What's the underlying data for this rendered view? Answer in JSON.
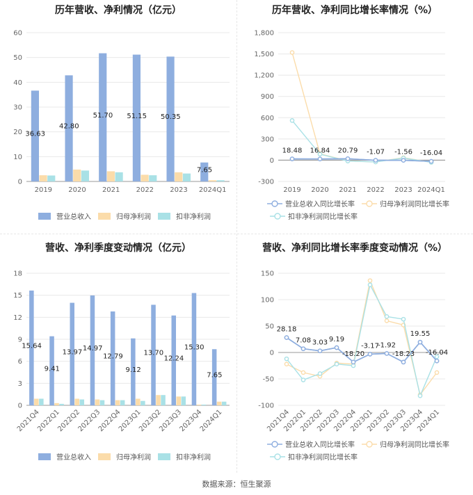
{
  "footer": {
    "source": "数据来源：恒生聚源"
  },
  "colors": {
    "revenue": "#8eaedf",
    "net_profit": "#fbdcaa",
    "deducted": "#a9e1e6"
  },
  "chart_data": [
    {
      "id": "annual_amount",
      "type": "bar",
      "title": "历年营收、净利情况（亿元）",
      "categories": [
        "2019",
        "2020",
        "2021",
        "2022",
        "2023",
        "2024Q1"
      ],
      "series": [
        {
          "name": "营业总收入",
          "values": [
            36.63,
            42.8,
            51.7,
            51.15,
            50.35,
            7.65
          ],
          "labels": [
            "36.63",
            "42.80",
            "51.70",
            "51.15",
            "50.35",
            "7.65"
          ]
        },
        {
          "name": "归母净利润",
          "values": [
            2.5,
            4.8,
            4.1,
            2.7,
            3.7,
            0.5
          ]
        },
        {
          "name": "扣非净利润",
          "values": [
            2.4,
            4.4,
            3.7,
            2.5,
            3.2,
            0.5
          ]
        }
      ],
      "yticks": [
        "0",
        "10",
        "20",
        "30",
        "40",
        "50",
        "60"
      ],
      "ylim": [
        0,
        60
      ],
      "legend": "bottom"
    },
    {
      "id": "annual_growth",
      "type": "line",
      "title": "历年营收、净利同比增长率情况（%）",
      "categories": [
        "2019",
        "2020",
        "2021",
        "2022",
        "2023",
        "2024Q1"
      ],
      "series": [
        {
          "name": "营业总收入同比增长率",
          "values": [
            18.48,
            16.84,
            20.79,
            -1.07,
            -1.56,
            -16.04
          ],
          "labels": [
            "18.48",
            "16.84",
            "20.79",
            "-1.07",
            "-1.56",
            "-16.04"
          ]
        },
        {
          "name": "归母净利润同比增长率",
          "values": [
            1520,
            90,
            -10,
            -25,
            35,
            -30
          ]
        },
        {
          "name": "扣非净利润同比增长率",
          "values": [
            560,
            85,
            -12,
            -25,
            30,
            -30
          ]
        }
      ],
      "yticks": [
        "-300",
        "0",
        "300",
        "600",
        "900",
        "1,200",
        "1,500",
        "1,800"
      ],
      "ylim": [
        -300,
        1800
      ],
      "legend": "bottom"
    },
    {
      "id": "quarterly_amount",
      "type": "bar",
      "title": "营收、净利季度变动情况（亿元）",
      "categories": [
        "2021Q4",
        "2022Q1",
        "2022Q2",
        "2022Q3",
        "2022Q4",
        "2023Q1",
        "2023Q2",
        "2023Q3",
        "2023Q4",
        "2024Q1"
      ],
      "series": [
        {
          "name": "营业总收入",
          "values": [
            15.64,
            9.41,
            13.97,
            14.97,
            12.79,
            9.12,
            13.7,
            12.24,
            15.3,
            7.65
          ],
          "labels": [
            "15.64",
            "9.41",
            "13.97",
            "14.97",
            "12.79",
            "9.12",
            "13.70",
            "12.24",
            "15.30",
            "7.65"
          ]
        },
        {
          "name": "归母净利润",
          "values": [
            0.9,
            0.3,
            0.9,
            0.8,
            0.7,
            0.9,
            1.4,
            1.2,
            0.1,
            0.5
          ]
        },
        {
          "name": "扣非净利润",
          "values": [
            0.9,
            0.2,
            0.8,
            0.7,
            0.7,
            0.6,
            1.4,
            1.2,
            0.1,
            0.5
          ]
        }
      ],
      "yticks": [
        "0",
        "3",
        "6",
        "9",
        "12",
        "15",
        "18"
      ],
      "ylim": [
        0,
        18
      ],
      "legend": "bottom"
    },
    {
      "id": "quarterly_growth",
      "type": "line",
      "title": "营收、净利同比增长率季度变动情况（%）",
      "categories": [
        "2021Q4",
        "2022Q1",
        "2022Q2",
        "2022Q3",
        "2022Q4",
        "2023Q1",
        "2023Q2",
        "2023Q3",
        "2023Q4",
        "2024Q1"
      ],
      "series": [
        {
          "name": "营业总收入同比增长率",
          "values": [
            28.18,
            7.08,
            3.03,
            9.19,
            -18.2,
            -3.17,
            -1.92,
            -18.23,
            19.55,
            -16.04
          ],
          "labels": [
            "28.18",
            "7.08",
            "3.03",
            "9.19",
            "-18.20",
            "-3.17",
            "-1.92",
            "-18.23",
            "19.55",
            "-16.04"
          ]
        },
        {
          "name": "归母净利润同比增长率",
          "values": [
            -22,
            -38,
            -45,
            -20,
            -22,
            136,
            60,
            52,
            -80,
            -38
          ]
        },
        {
          "name": "扣非净利润同比增长率",
          "values": [
            -12,
            -52,
            -40,
            -22,
            -25,
            128,
            68,
            63,
            -82,
            -8
          ]
        }
      ],
      "yticks": [
        "-100",
        "-50",
        "0",
        "50",
        "100",
        "150"
      ],
      "ylim": [
        -100,
        150
      ],
      "legend": "bottom"
    }
  ]
}
